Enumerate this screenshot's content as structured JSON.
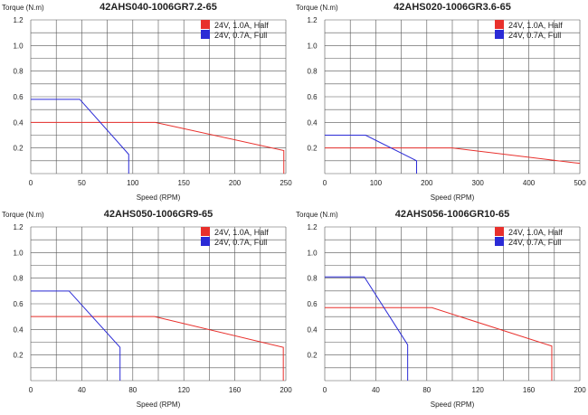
{
  "colors": {
    "red": "#e8302c",
    "blue": "#2b2bd6",
    "grid": "#555555"
  },
  "chart_data": [
    {
      "type": "line",
      "title": "42AHS040-1006GR7.2-65",
      "ylabel": "Torque (N.m)",
      "xlabel": "Speed (RPM)",
      "xlim": [
        0,
        250
      ],
      "ylim": [
        0,
        1.2
      ],
      "xticks": [
        0,
        50,
        100,
        150,
        200,
        250
      ],
      "yticks": [
        0.2,
        0.4,
        0.6,
        0.8,
        1.0,
        1.2
      ],
      "ytick_labels": [
        "0.2",
        "0.4",
        "0.6",
        "0.8",
        "1.0",
        "1.2"
      ],
      "grid": true,
      "legend_position": "top-right",
      "series": [
        {
          "name": "24V, 1.0A, Half",
          "color": "#e8302c",
          "x": [
            0,
            122,
            248,
            248
          ],
          "y": [
            0.4,
            0.4,
            0.18,
            0.0
          ]
        },
        {
          "name": "24V, 0.7A, Full",
          "color": "#2b2bd6",
          "x": [
            0,
            48,
            96,
            96
          ],
          "y": [
            0.58,
            0.58,
            0.15,
            0.0
          ]
        }
      ]
    },
    {
      "type": "line",
      "title": "42AHS020-1006GR3.6-65",
      "ylabel": "Torque (N.m)",
      "xlabel": "Speed (RPM)",
      "xlim": [
        0,
        500
      ],
      "ylim": [
        0,
        1.2
      ],
      "xticks": [
        0,
        100,
        200,
        300,
        400,
        500
      ],
      "yticks": [
        0.2,
        0.4,
        0.6,
        0.8,
        1.0,
        1.2
      ],
      "ytick_labels": [
        "0.2",
        "0.4",
        "0.6",
        "0.8",
        "1.0",
        "1.2"
      ],
      "grid": true,
      "legend_position": "top-right",
      "series": [
        {
          "name": "24V, 1.0A, Half",
          "color": "#e8302c",
          "x": [
            0,
            250,
            500
          ],
          "y": [
            0.2,
            0.2,
            0.08
          ]
        },
        {
          "name": "24V, 0.7A, Full",
          "color": "#2b2bd6",
          "x": [
            0,
            80,
            180,
            180
          ],
          "y": [
            0.3,
            0.3,
            0.1,
            0.0
          ]
        }
      ]
    },
    {
      "type": "line",
      "title": "42AHS050-1006GR9-65",
      "ylabel": "Torque (N.m)",
      "xlabel": "Speed (RPM)",
      "xlim": [
        0,
        200
      ],
      "ylim": [
        0,
        1.2
      ],
      "xticks": [
        0,
        40,
        80,
        120,
        160,
        200
      ],
      "yticks": [
        0.2,
        0.4,
        0.6,
        0.8,
        1.0,
        1.2
      ],
      "ytick_labels": [
        "0.2",
        "0.4",
        "0.6",
        "0.8",
        "1.0",
        "1.2"
      ],
      "grid": true,
      "legend_position": "top-right",
      "series": [
        {
          "name": "24V, 1.0A, Half",
          "color": "#e8302c",
          "x": [
            0,
            97,
            198,
            198
          ],
          "y": [
            0.5,
            0.5,
            0.26,
            0.0
          ]
        },
        {
          "name": "24V, 0.7A, Full",
          "color": "#2b2bd6",
          "x": [
            0,
            30,
            70,
            70
          ],
          "y": [
            0.7,
            0.7,
            0.26,
            0.0
          ]
        }
      ]
    },
    {
      "type": "line",
      "title": "42AHS056-1006GR10-65",
      "ylabel": "Torque (N.m)",
      "xlabel": "Speed (RPM)",
      "xlim": [
        0,
        200
      ],
      "ylim": [
        0,
        1.2
      ],
      "xticks": [
        0,
        40,
        80,
        120,
        160,
        200
      ],
      "yticks": [
        0.2,
        0.4,
        0.6,
        0.8,
        1.0,
        1.2
      ],
      "ytick_labels": [
        "0.2",
        "0.4",
        "0.6",
        "0.8",
        "1.0",
        "1.2"
      ],
      "grid": true,
      "legend_position": "top-right",
      "series": [
        {
          "name": "24V, 1.0A, Half",
          "color": "#e8302c",
          "x": [
            0,
            84,
            178,
            178
          ],
          "y": [
            0.57,
            0.57,
            0.27,
            0.0
          ]
        },
        {
          "name": "24V, 0.7A, Full",
          "color": "#2b2bd6",
          "x": [
            0,
            31,
            65,
            65
          ],
          "y": [
            0.81,
            0.81,
            0.28,
            0.0
          ]
        }
      ]
    }
  ]
}
